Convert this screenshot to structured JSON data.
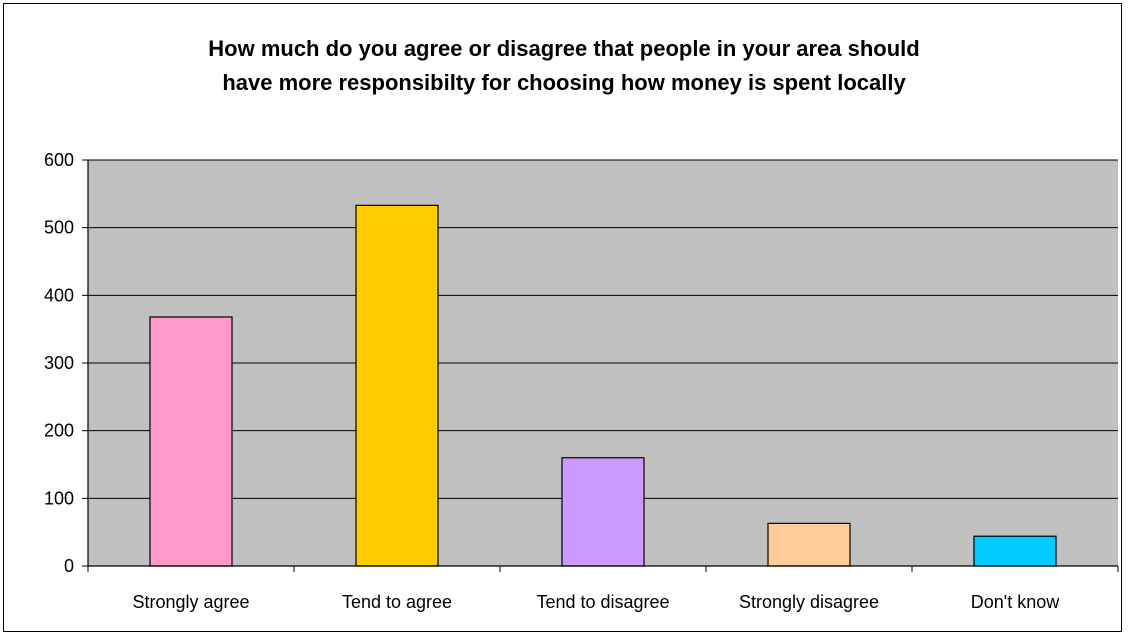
{
  "chart_data": {
    "type": "bar",
    "title_lines": [
      "How much do you agree or disagree that people in your area should",
      "have more responsibilty for choosing how money is spent locally"
    ],
    "categories": [
      "Strongly agree",
      "Tend to agree",
      "Tend to disagree",
      "Strongly disagree",
      "Don't know"
    ],
    "values": [
      368,
      533,
      160,
      63,
      44
    ],
    "colors": [
      "#ff99cc",
      "#ffcc00",
      "#cc99ff",
      "#ffcc99",
      "#00ccff"
    ],
    "ylim": [
      0,
      600
    ],
    "yticks": [
      0,
      100,
      200,
      300,
      400,
      500,
      600
    ],
    "plot_background": "#c0c0c0",
    "grid": true,
    "legend": "none"
  }
}
